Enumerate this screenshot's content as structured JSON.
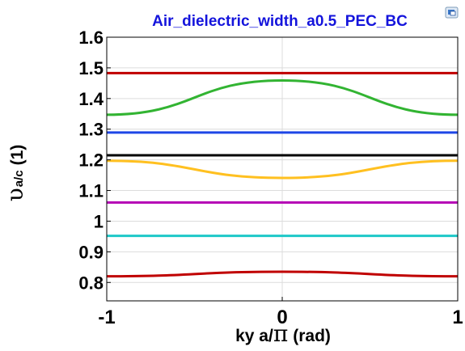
{
  "toolbar": {
    "icon": "window-restore-icon"
  },
  "chart_data": {
    "type": "line",
    "title": "Air_dielectric_width_a0.5_PEC_BC",
    "xlabel_prefix": "ky a/",
    "xlabel_symbol": "π",
    "xlabel_suffix": "(rad)",
    "ylabel_symbol": "υ",
    "ylabel_sub": "a/c",
    "ylabel_suffix": "(1)",
    "xlim": [
      -1,
      1
    ],
    "ylim": [
      0.74,
      1.6
    ],
    "xticks": [
      -1,
      0,
      1
    ],
    "xtick_labels": [
      "-1",
      "0",
      "1"
    ],
    "yticks": [
      0.8,
      0.9,
      1.0,
      1.1,
      1.2,
      1.3,
      1.4,
      1.5,
      1.6
    ],
    "ytick_labels": [
      "0.8",
      "0.9",
      "1",
      "1.1",
      "1.2",
      "1.3",
      "1.4",
      "1.5",
      "1.6"
    ],
    "grid": true,
    "series": [
      {
        "color": "#c00000",
        "x": [
          -1,
          -0.5,
          0,
          0.5,
          1
        ],
        "y": [
          0.82,
          0.827,
          0.835,
          0.827,
          0.82
        ]
      },
      {
        "color": "#1ec8c8",
        "x": [
          -1,
          0,
          1
        ],
        "y": [
          0.952,
          0.952,
          0.952
        ]
      },
      {
        "color": "#b400b4",
        "x": [
          -1,
          0,
          1
        ],
        "y": [
          1.061,
          1.061,
          1.061
        ]
      },
      {
        "color": "#ffc020",
        "x": [
          -1,
          -0.5,
          0,
          0.5,
          1
        ],
        "y": [
          1.197,
          1.17,
          1.141,
          1.17,
          1.197
        ]
      },
      {
        "color": "#000000",
        "x": [
          -1,
          0,
          1
        ],
        "y": [
          1.215,
          1.215,
          1.215
        ]
      },
      {
        "color": "#1e46e6",
        "x": [
          -1,
          0,
          1
        ],
        "y": [
          1.289,
          1.289,
          1.289
        ]
      },
      {
        "color": "#32b432",
        "x": [
          -1,
          -0.5,
          0,
          0.5,
          1
        ],
        "y": [
          1.347,
          1.403,
          1.459,
          1.403,
          1.347
        ]
      },
      {
        "color": "#c00000",
        "x": [
          -1,
          0,
          1
        ],
        "y": [
          1.483,
          1.483,
          1.483
        ]
      }
    ]
  }
}
